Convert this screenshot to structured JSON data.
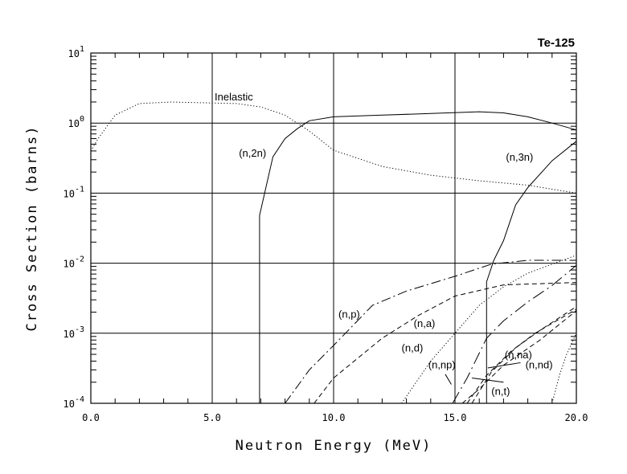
{
  "chart_data": {
    "type": "line",
    "title": "Te-125",
    "xlabel": "Neutron Energy (MeV)",
    "ylabel": "Cross Section (barns)",
    "xlim": [
      0,
      20
    ],
    "ylim": [
      0.0001,
      10
    ],
    "yscale": "log",
    "grid": true,
    "x_ticks": [
      0,
      5,
      10,
      15,
      20
    ],
    "x_tick_labels": [
      "0.0",
      "5.0",
      "10.0",
      "15.0",
      "20.0"
    ],
    "y_ticks": [
      {
        "base": "10",
        "exp": "-4",
        "value": 0.0001
      },
      {
        "base": "10",
        "exp": "-3",
        "value": 0.001
      },
      {
        "base": "10",
        "exp": "-2",
        "value": 0.01
      },
      {
        "base": "10",
        "exp": "-1",
        "value": 0.1
      },
      {
        "base": "10",
        "exp": "0",
        "value": 1
      },
      {
        "base": "10",
        "exp": "1",
        "value": 10
      }
    ],
    "series": [
      {
        "name": "Inelastic",
        "style": "dotted",
        "x": [
          0,
          0.3,
          1,
          2,
          3.3,
          6,
          7,
          8,
          9,
          10,
          12,
          14,
          16,
          18,
          20
        ],
        "y": [
          0.4,
          0.6,
          1.3,
          1.9,
          2.0,
          1.9,
          1.7,
          1.3,
          0.77,
          0.41,
          0.24,
          0.18,
          0.15,
          0.13,
          0.1
        ],
        "label": {
          "x": 5.1,
          "y": 2.4
        }
      },
      {
        "name": "(n,2n)",
        "style": "solid",
        "x": [
          6.95,
          6.95,
          7.5,
          8,
          8.5,
          9,
          10,
          12,
          14,
          16,
          17,
          18,
          19,
          20
        ],
        "y": [
          0.0001,
          0.048,
          0.33,
          0.6,
          0.83,
          1.08,
          1.23,
          1.3,
          1.37,
          1.45,
          1.4,
          1.23,
          1.0,
          0.8
        ],
        "label": {
          "x": 6.1,
          "y": 0.38
        }
      },
      {
        "name": "(n,3n)",
        "style": "solid",
        "x": [
          16.3,
          16.3,
          16.6,
          17,
          17.5,
          18,
          19,
          20
        ],
        "y": [
          0.0001,
          0.0054,
          0.011,
          0.021,
          0.068,
          0.12,
          0.29,
          0.55
        ],
        "label": {
          "x": 17.1,
          "y": 0.33
        }
      },
      {
        "name": "(n,p)",
        "style": "dashdot",
        "x": [
          8,
          9,
          10,
          11.6,
          13,
          15,
          16.5,
          18,
          20
        ],
        "y": [
          0.0001,
          0.0003,
          0.00067,
          0.0025,
          0.004,
          0.0065,
          0.0097,
          0.011,
          0.011
        ],
        "label": {
          "x": 10.2,
          "y": 0.0019
        }
      },
      {
        "name": "(n,a)",
        "style": "dashed",
        "x": [
          9.2,
          10,
          12,
          13.5,
          15,
          17,
          20
        ],
        "y": [
          0.0001,
          0.00023,
          0.00085,
          0.0018,
          0.0034,
          0.0049,
          0.0053
        ],
        "label": {
          "x": 13.3,
          "y": 0.0014
        }
      },
      {
        "name": "(n,d)",
        "style": "dotted",
        "x": [
          12.8,
          14,
          15,
          16,
          17,
          18,
          20
        ],
        "y": [
          0.0001,
          0.0004,
          0.001,
          0.0025,
          0.0046,
          0.0072,
          0.013
        ],
        "label": {
          "x": 12.8,
          "y": 0.00063
        }
      },
      {
        "name": "(n,np)",
        "style": "longdashdot",
        "x": [
          14.9,
          15.5,
          16.3,
          17,
          18,
          19,
          20
        ],
        "y": [
          0.0001,
          0.00023,
          0.00085,
          0.0015,
          0.0028,
          0.0048,
          0.0093
        ],
        "label": {
          "x": 13.9,
          "y": 0.00036
        },
        "leader": [
          [
            14.6,
            0.00026
          ],
          [
            14.85,
            0.000186
          ]
        ]
      },
      {
        "name": "(n,na)",
        "style": "dashed",
        "x": [
          15.7,
          16.5,
          17.5,
          18.5,
          20
        ],
        "y": [
          0.0001,
          0.00028,
          0.00062,
          0.0011,
          0.0024
        ],
        "label": {
          "x": 17.05,
          "y": 0.0005
        },
        "leader": [
          [
            17.7,
            0.00038
          ],
          [
            16.35,
            0.00032
          ]
        ]
      },
      {
        "name": "(n,nd)",
        "style": "dashed",
        "x": [
          15.5,
          16.3,
          17.3,
          18.3,
          20
        ],
        "y": [
          0.0001,
          0.00025,
          0.00055,
          0.001,
          0.0022
        ],
        "label": {
          "x": 17.9,
          "y": 0.00036
        }
      },
      {
        "name": "(n,t)",
        "style": "dashed",
        "x": [
          15.3,
          16,
          17,
          18.5,
          20
        ],
        "y": [
          0.0001,
          0.00016,
          0.00035,
          0.0008,
          0.0021
        ],
        "label": {
          "x": 16.5,
          "y": 0.00015
        },
        "leader": [
          [
            17.0,
            0.0002
          ],
          [
            15.7,
            0.00023
          ]
        ]
      },
      {
        "name": "",
        "style": "dotted",
        "x": [
          19,
          19.3,
          19.6,
          20
        ],
        "y": [
          0.0001,
          0.00025,
          0.0005,
          0.001
        ]
      }
    ]
  }
}
